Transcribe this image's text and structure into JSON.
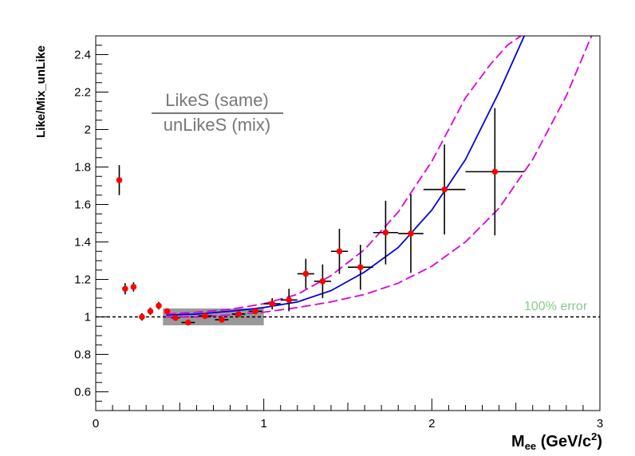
{
  "chart_data": {
    "type": "scatter",
    "title": "",
    "xlabel_main": "M",
    "xlabel_sub": "ee",
    "xlabel_units": " (GeV/c",
    "xlabel_sup": "2",
    "xlabel_end": ")",
    "ylabel": "Like/Mix_unLike",
    "xlim": [
      0,
      3
    ],
    "ylim": [
      0.5,
      2.5
    ],
    "x_ticks": [
      "0",
      "1",
      "2",
      "3"
    ],
    "x_tick_values": [
      0,
      1,
      2,
      3
    ],
    "y_ticks": [
      "0.6",
      "0.8",
      "1",
      "1.2",
      "1.4",
      "1.6",
      "1.8",
      "2",
      "2.2",
      "2.4"
    ],
    "y_tick_values": [
      0.6,
      0.8,
      1.0,
      1.2,
      1.4,
      1.6,
      1.8,
      2.0,
      2.2,
      2.4
    ],
    "legend_numerator": "LikeS (same)",
    "legend_denominator": "unLikeS (mix)",
    "annotation": "100% error",
    "reference_line_y": 1.0,
    "systematic_band": {
      "x": [
        0.4,
        1.0
      ],
      "y": [
        0.955,
        1.045
      ]
    },
    "points": [
      {
        "x": 0.14,
        "y": 1.73,
        "xerr": 0.0,
        "yerr": 0.08
      },
      {
        "x": 0.175,
        "y": 1.15,
        "xerr": 0.015,
        "yerr": 0.03
      },
      {
        "x": 0.225,
        "y": 1.16,
        "xerr": 0.015,
        "yerr": 0.025
      },
      {
        "x": 0.275,
        "y": 1.0,
        "xerr": 0.015,
        "yerr": 0.02
      },
      {
        "x": 0.325,
        "y": 1.03,
        "xerr": 0.015,
        "yerr": 0.02
      },
      {
        "x": 0.375,
        "y": 1.06,
        "xerr": 0.015,
        "yerr": 0.02
      },
      {
        "x": 0.425,
        "y": 1.03,
        "xerr": 0.015,
        "yerr": 0.015
      },
      {
        "x": 0.475,
        "y": 0.995,
        "xerr": 0.025,
        "yerr": 0.01
      },
      {
        "x": 0.55,
        "y": 0.97,
        "xerr": 0.04,
        "yerr": 0.01
      },
      {
        "x": 0.65,
        "y": 1.005,
        "xerr": 0.04,
        "yerr": 0.01
      },
      {
        "x": 0.75,
        "y": 0.985,
        "xerr": 0.04,
        "yerr": 0.012
      },
      {
        "x": 0.85,
        "y": 1.015,
        "xerr": 0.04,
        "yerr": 0.012
      },
      {
        "x": 0.95,
        "y": 1.03,
        "xerr": 0.04,
        "yerr": 0.015
      },
      {
        "x": 1.05,
        "y": 1.07,
        "xerr": 0.05,
        "yerr": 0.03
      },
      {
        "x": 1.15,
        "y": 1.09,
        "xerr": 0.05,
        "yerr": 0.06
      },
      {
        "x": 1.25,
        "y": 1.23,
        "xerr": 0.05,
        "yerr": 0.08
      },
      {
        "x": 1.35,
        "y": 1.19,
        "xerr": 0.05,
        "yerr": 0.09
      },
      {
        "x": 1.45,
        "y": 1.35,
        "xerr": 0.05,
        "yerr": 0.12
      },
      {
        "x": 1.575,
        "y": 1.265,
        "xerr": 0.075,
        "yerr": 0.12
      },
      {
        "x": 1.725,
        "y": 1.45,
        "xerr": 0.075,
        "yerr": 0.17
      },
      {
        "x": 1.875,
        "y": 1.445,
        "xerr": 0.075,
        "yerr": 0.21
      },
      {
        "x": 2.075,
        "y": 1.68,
        "xerr": 0.125,
        "yerr": 0.24
      },
      {
        "x": 2.375,
        "y": 1.775,
        "xerr": 0.175,
        "yerr": 0.34
      }
    ],
    "curves": [
      {
        "name": "central",
        "color": "#0000dd",
        "dashed": false,
        "x": [
          0.42,
          0.6,
          0.8,
          1.0,
          1.2,
          1.4,
          1.6,
          1.8,
          2.0,
          2.2,
          2.4,
          2.55
        ],
        "y": [
          1.01,
          1.015,
          1.03,
          1.05,
          1.08,
          1.14,
          1.24,
          1.37,
          1.57,
          1.84,
          2.2,
          2.5
        ]
      },
      {
        "name": "upper",
        "color": "#dd00dd",
        "dashed": true,
        "x": [
          0.42,
          0.6,
          0.8,
          1.0,
          1.2,
          1.4,
          1.6,
          1.8,
          2.0,
          2.1,
          2.2,
          2.35,
          2.45,
          2.53
        ],
        "y": [
          1.015,
          1.025,
          1.04,
          1.07,
          1.12,
          1.22,
          1.36,
          1.56,
          1.83,
          2.0,
          2.17,
          2.35,
          2.45,
          2.5
        ]
      },
      {
        "name": "lower",
        "color": "#dd00dd",
        "dashed": true,
        "x": [
          0.42,
          0.6,
          0.8,
          1.0,
          1.2,
          1.4,
          1.6,
          1.8,
          2.0,
          2.2,
          2.4,
          2.6,
          2.8,
          2.95
        ],
        "y": [
          1.0,
          1.0,
          1.01,
          1.025,
          1.05,
          1.08,
          1.12,
          1.18,
          1.27,
          1.4,
          1.58,
          1.84,
          2.18,
          2.5
        ]
      }
    ],
    "colors": {
      "marker": "#ff0000",
      "errorbar": "#000000",
      "band": "#999999",
      "legend_text": "#777777",
      "annotation": "#88cc88"
    }
  }
}
